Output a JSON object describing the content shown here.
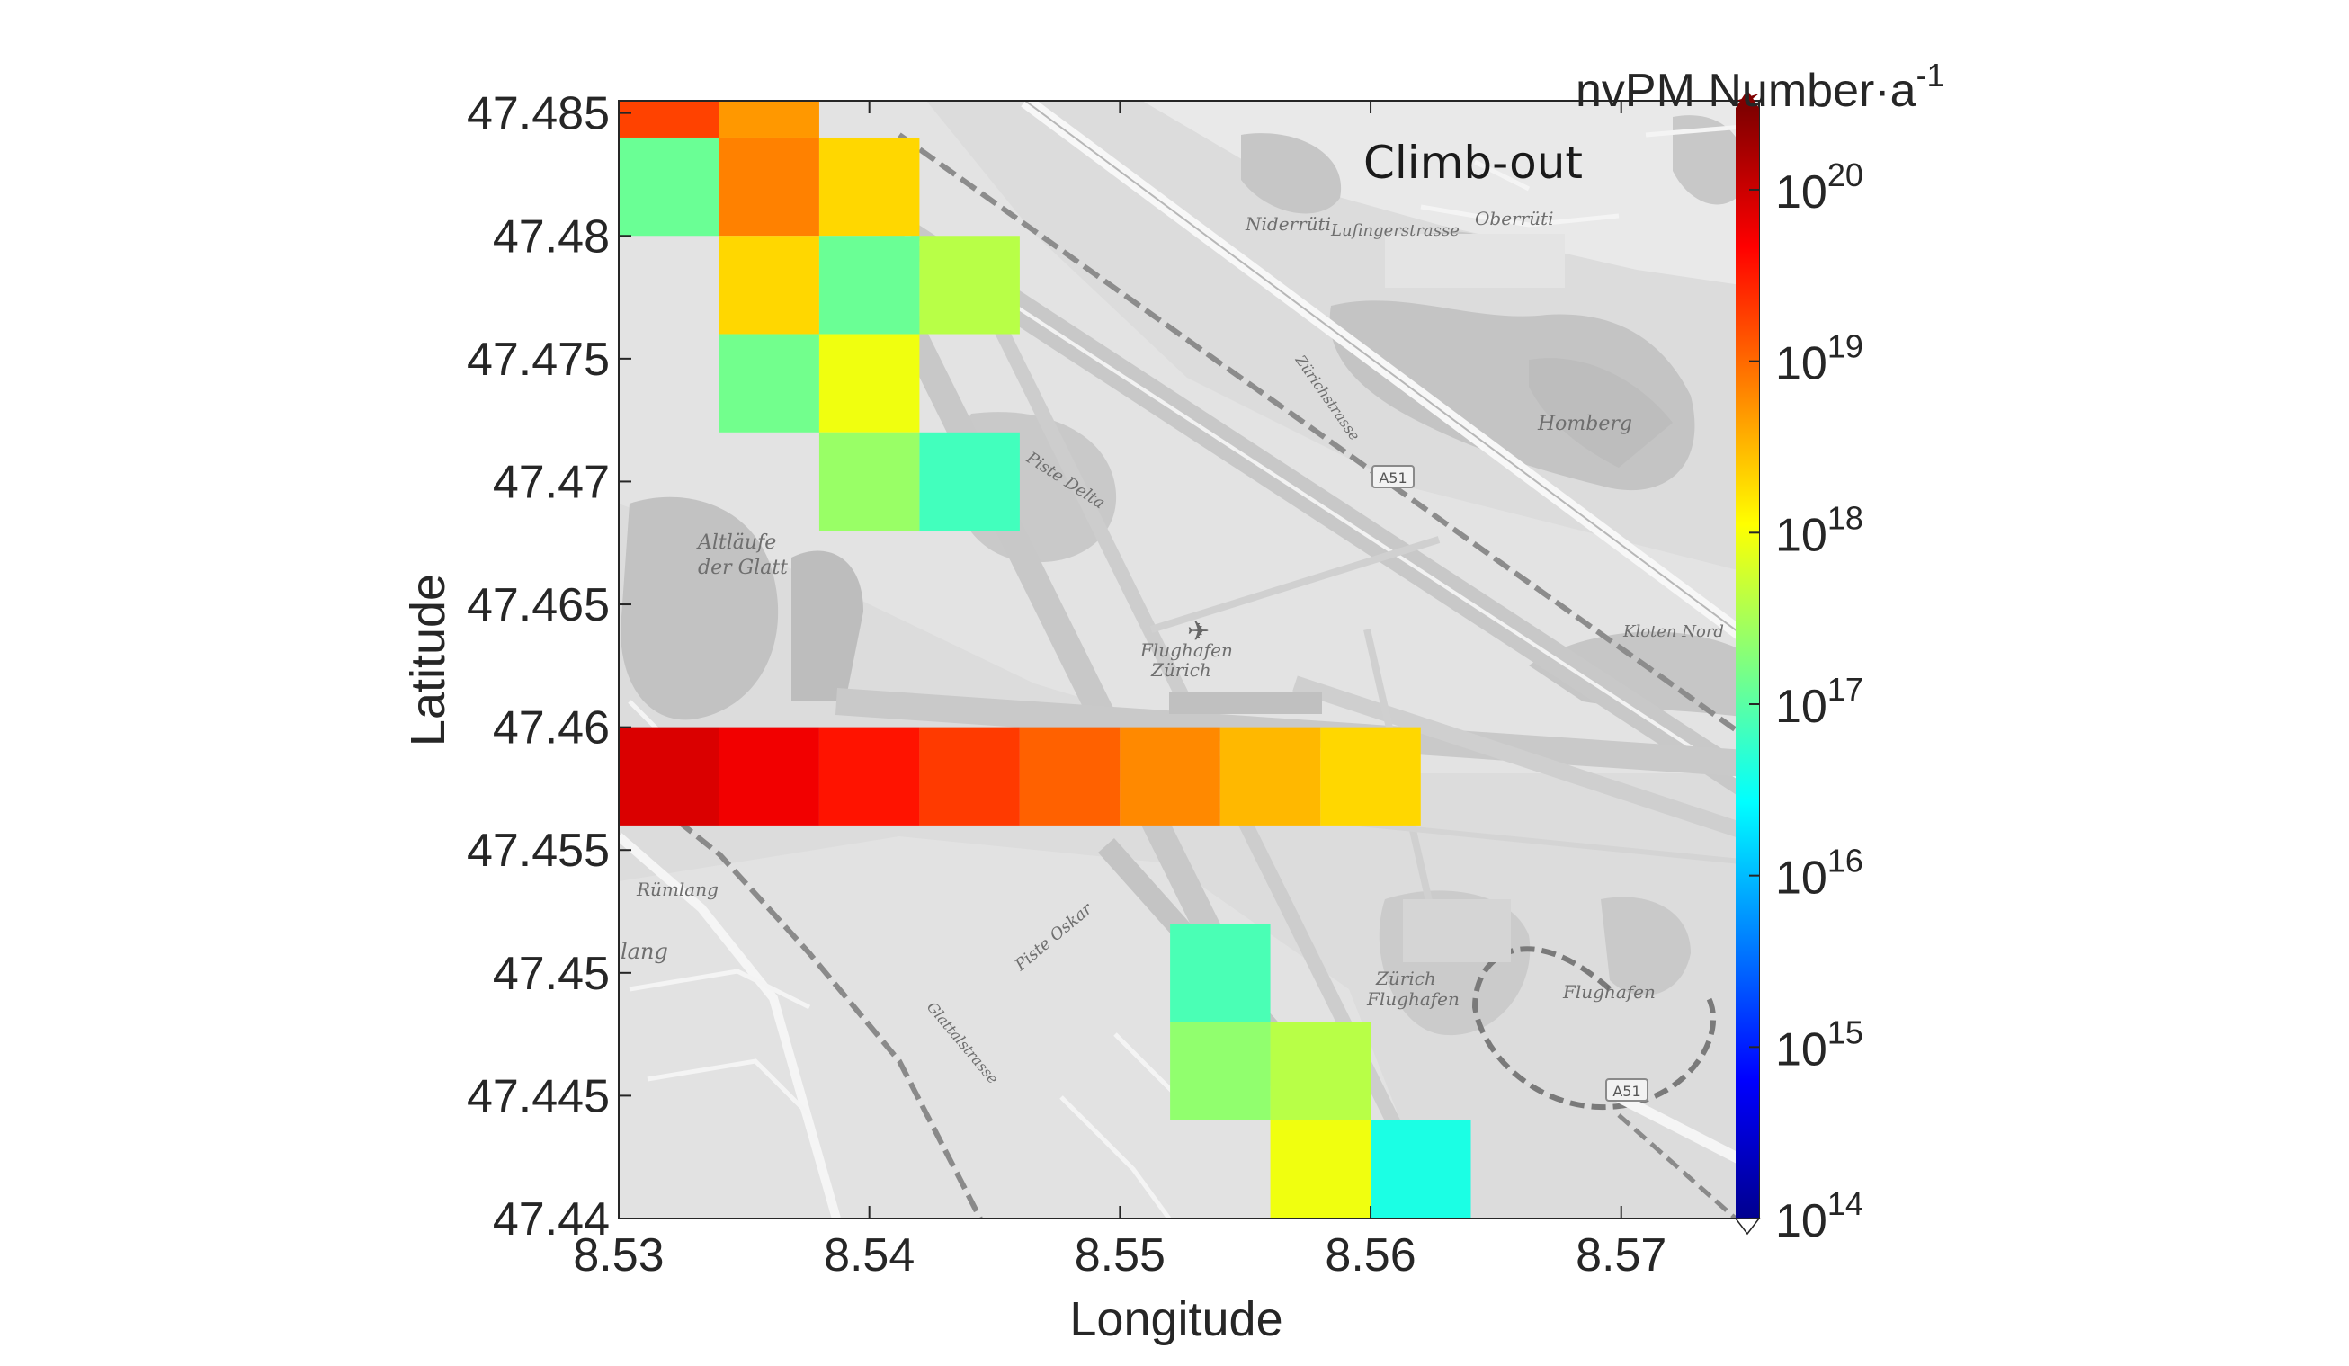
{
  "chart_data": {
    "type": "heatmap",
    "panel_label": "Climb-out",
    "xlabel": "Longitude",
    "ylabel": "Latitude",
    "xlim": [
      8.53,
      8.5755
    ],
    "ylim": [
      47.44,
      47.4855
    ],
    "x_ticks": [
      "8.53",
      "8.54",
      "8.55",
      "8.56",
      "8.57"
    ],
    "y_ticks": [
      "47.44",
      "47.445",
      "47.45",
      "47.455",
      "47.46",
      "47.465",
      "47.47",
      "47.475",
      "47.48",
      "47.485"
    ],
    "colorbar": {
      "title_main": "nvPM Number·a",
      "title_exp": "-1",
      "scale": "log",
      "range": [
        100000000000000.0,
        3e+20
      ],
      "ticks": [
        {
          "value": 14,
          "base": "10",
          "exp": "14"
        },
        {
          "value": 15,
          "base": "10",
          "exp": "15"
        },
        {
          "value": 16,
          "base": "10",
          "exp": "16"
        },
        {
          "value": 17,
          "base": "10",
          "exp": "17"
        },
        {
          "value": 18,
          "base": "10",
          "exp": "18"
        },
        {
          "value": 19,
          "base": "10",
          "exp": "19"
        },
        {
          "value": 20,
          "base": "10",
          "exp": "20"
        }
      ],
      "colormap": "jet"
    },
    "cell_size_deg": 0.004,
    "cells": [
      {
        "lon": 8.53,
        "lat": 47.456,
        "log10_value": 19.9
      },
      {
        "lon": 8.534,
        "lat": 47.456,
        "log10_value": 19.75
      },
      {
        "lon": 8.538,
        "lat": 47.456,
        "log10_value": 19.55
      },
      {
        "lon": 8.542,
        "lat": 47.456,
        "log10_value": 19.3
      },
      {
        "lon": 8.546,
        "lat": 47.456,
        "log10_value": 19.05
      },
      {
        "lon": 8.55,
        "lat": 47.456,
        "log10_value": 18.8
      },
      {
        "lon": 8.554,
        "lat": 47.456,
        "log10_value": 18.5
      },
      {
        "lon": 8.558,
        "lat": 47.456,
        "log10_value": 18.3
      },
      {
        "lon": 8.53,
        "lat": 47.484,
        "log10_value": 19.25
      },
      {
        "lon": 8.534,
        "lat": 47.484,
        "log10_value": 18.7
      },
      {
        "lon": 8.53,
        "lat": 47.48,
        "log10_value": 17.1
      },
      {
        "lon": 8.534,
        "lat": 47.48,
        "log10_value": 18.85
      },
      {
        "lon": 8.538,
        "lat": 47.48,
        "log10_value": 18.3
      },
      {
        "lon": 8.534,
        "lat": 47.476,
        "log10_value": 18.3
      },
      {
        "lon": 8.538,
        "lat": 47.476,
        "log10_value": 17.1
      },
      {
        "lon": 8.542,
        "lat": 47.476,
        "log10_value": 17.6
      },
      {
        "lon": 8.534,
        "lat": 47.472,
        "log10_value": 17.15
      },
      {
        "lon": 8.538,
        "lat": 47.472,
        "log10_value": 17.95
      },
      {
        "lon": 8.538,
        "lat": 47.468,
        "log10_value": 17.4
      },
      {
        "lon": 8.542,
        "lat": 47.468,
        "log10_value": 16.85
      },
      {
        "lon": 8.552,
        "lat": 47.448,
        "log10_value": 16.9
      },
      {
        "lon": 8.552,
        "lat": 47.444,
        "log10_value": 17.35
      },
      {
        "lon": 8.556,
        "lat": 47.444,
        "log10_value": 17.6
      },
      {
        "lon": 8.556,
        "lat": 47.44,
        "log10_value": 17.95
      },
      {
        "lon": 8.56,
        "lat": 47.44,
        "log10_value": 16.6
      }
    ]
  },
  "map_labels": {
    "niderruti": "Niderrüti",
    "oberruti": "Oberrüti",
    "homberg": "Homberg",
    "a51_top": "A51",
    "a51_bottom": "A51",
    "altlaufe": "Altläufe",
    "der_glatt": "der Glatt",
    "flughafen_zurich": "Flughafen",
    "zurich": "Zürich",
    "zurich_flughafen_1": "Zürich",
    "zurich_flughafen_2": "Flughafen",
    "flughafen_right": "Flughafen",
    "rumlang": "Rümlang",
    "lang": "lang",
    "kloten_nord": "Kloten Nord",
    "pisten_delta": "Piste Delta",
    "pisten_oskar": "Piste Oskar",
    "luefingerstrasse": "Lufingerstrasse",
    "zurichstrasse": "Zürichstrasse",
    "glattalstrasse": "Glattalstrasse"
  }
}
